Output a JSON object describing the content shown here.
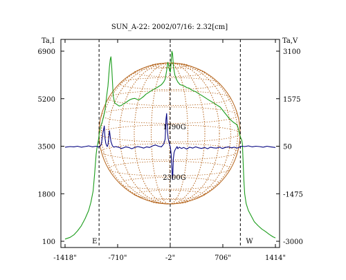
{
  "chart_data": {
    "type": "line",
    "title": "SUN_A-22: 2002/07/16: 2.32[cm]",
    "y_left_label": "Ta,I",
    "y_right_label": "Ta,V",
    "x_ticks": [
      -1418,
      -710,
      -2,
      706,
      1414
    ],
    "x_tick_labels": [
      "-1418\"",
      "-710\"",
      "-2\"",
      "706\"",
      "1414\""
    ],
    "xlim": [
      -1418,
      1414
    ],
    "y_left_ticks": [
      100,
      1800,
      3500,
      5200,
      6900
    ],
    "y_left_tick_labels": [
      "100",
      "1800",
      "3500",
      "5200",
      "6900"
    ],
    "y_left_lim": [
      100,
      6900
    ],
    "y_right_ticks": [
      -3000,
      -1475,
      50,
      1575,
      3100
    ],
    "y_right_tick_labels": [
      "-3000",
      "-1475",
      "50",
      "1575",
      "3100"
    ],
    "y_right_lim": [
      -3000,
      3100
    ],
    "limb_markers": [
      {
        "x": -960,
        "label": "E"
      },
      {
        "x": -2,
        "label": ""
      },
      {
        "x": 942,
        "label": "W"
      }
    ],
    "annotations": [
      {
        "text": "1790G",
        "x": -2,
        "y_left": 4210
      },
      {
        "text": "2300G",
        "x": -2,
        "y_left": 2400
      }
    ],
    "series": [
      {
        "axis": "left",
        "color": "#1a9c1a",
        "x": [
          -1418,
          -1350,
          -1300,
          -1250,
          -1200,
          -1150,
          -1100,
          -1070,
          -1040,
          -1020,
          -1000,
          -990,
          -980,
          -970,
          -960,
          -950,
          -940,
          -920,
          -900,
          -880,
          -860,
          -840,
          -820,
          -810,
          -800,
          -790,
          -770,
          -750,
          -720,
          -690,
          -660,
          -630,
          -600,
          -570,
          -540,
          -510,
          -480,
          -450,
          -420,
          -390,
          -360,
          -330,
          -300,
          -270,
          -240,
          -210,
          -180,
          -150,
          -120,
          -90,
          -70,
          -50,
          -35,
          -20,
          -10,
          0,
          10,
          20,
          30,
          40,
          50,
          60,
          80,
          100,
          130,
          160,
          190,
          220,
          250,
          280,
          310,
          340,
          370,
          400,
          430,
          460,
          490,
          520,
          550,
          580,
          610,
          640,
          670,
          700,
          730,
          760,
          790,
          820,
          850,
          880,
          900,
          910,
          920,
          930,
          940,
          950,
          960,
          970,
          980,
          990,
          1000,
          1020,
          1050,
          1090,
          1130,
          1180,
          1230,
          1280,
          1330,
          1380,
          1414
        ],
        "y": [
          180,
          240,
          330,
          470,
          650,
          900,
          1200,
          1500,
          1900,
          2500,
          3200,
          3400,
          3550,
          3700,
          3900,
          4050,
          4200,
          4350,
          4550,
          4800,
          5250,
          5650,
          6350,
          6600,
          6700,
          6350,
          5300,
          5050,
          4990,
          4940,
          4960,
          5020,
          5060,
          5120,
          5170,
          5200,
          5210,
          5180,
          5160,
          5220,
          5280,
          5360,
          5410,
          5460,
          5510,
          5560,
          5600,
          5650,
          5700,
          5800,
          5900,
          6200,
          6500,
          6350,
          6200,
          6150,
          6500,
          6900,
          6800,
          6400,
          6200,
          6050,
          5900,
          5800,
          5700,
          5680,
          5650,
          5600,
          5580,
          5520,
          5480,
          5450,
          5400,
          5350,
          5300,
          5250,
          5200,
          5150,
          5100,
          5050,
          5000,
          4950,
          4900,
          4800,
          4700,
          4600,
          4500,
          4420,
          4350,
          4300,
          4250,
          4180,
          4060,
          3950,
          3850,
          3780,
          3720,
          3580,
          2900,
          2250,
          1800,
          1450,
          1200,
          1000,
          800,
          660,
          540,
          450,
          350,
          260,
          220
        ]
      },
      {
        "axis": "right",
        "color": "#00007f",
        "x": [
          -1418,
          -1350,
          -1300,
          -1250,
          -1200,
          -1150,
          -1100,
          -1050,
          -1000,
          -960,
          -930,
          -910,
          -890,
          -880,
          -870,
          -860,
          -850,
          -840,
          -830,
          -820,
          -800,
          -780,
          -760,
          -740,
          -720,
          -690,
          -660,
          -630,
          -600,
          -560,
          -520,
          -480,
          -440,
          -400,
          -360,
          -320,
          -280,
          -240,
          -200,
          -160,
          -120,
          -90,
          -70,
          -60,
          -50,
          -40,
          -30,
          -20,
          -10,
          0,
          10,
          20,
          25,
          30,
          35,
          40,
          50,
          60,
          70,
          80,
          90,
          100,
          120,
          150,
          180,
          220,
          260,
          300,
          340,
          380,
          420,
          460,
          500,
          540,
          580,
          620,
          660,
          700,
          740,
          780,
          820,
          860,
          900,
          940,
          960,
          1000,
          1050,
          1100,
          1150,
          1200,
          1250,
          1300,
          1350,
          1414
        ],
        "y": [
          20,
          40,
          30,
          50,
          20,
          40,
          60,
          30,
          50,
          20,
          100,
          450,
          700,
          300,
          150,
          80,
          40,
          100,
          300,
          550,
          200,
          60,
          20,
          40,
          30,
          10,
          -20,
          0,
          30,
          10,
          -30,
          10,
          40,
          20,
          -10,
          30,
          10,
          60,
          90,
          50,
          30,
          120,
          280,
          900,
          1100,
          550,
          300,
          200,
          100,
          20,
          -200,
          -600,
          -900,
          -1020,
          -700,
          -350,
          -150,
          -80,
          -40,
          0,
          40,
          -30,
          20,
          -20,
          10,
          -40,
          20,
          -10,
          30,
          0,
          -20,
          10,
          -30,
          20,
          0,
          -10,
          20,
          -20,
          10,
          30,
          0,
          20,
          -10,
          30,
          50,
          40,
          60,
          30,
          50,
          40,
          20,
          50,
          30,
          10
        ]
      }
    ]
  }
}
